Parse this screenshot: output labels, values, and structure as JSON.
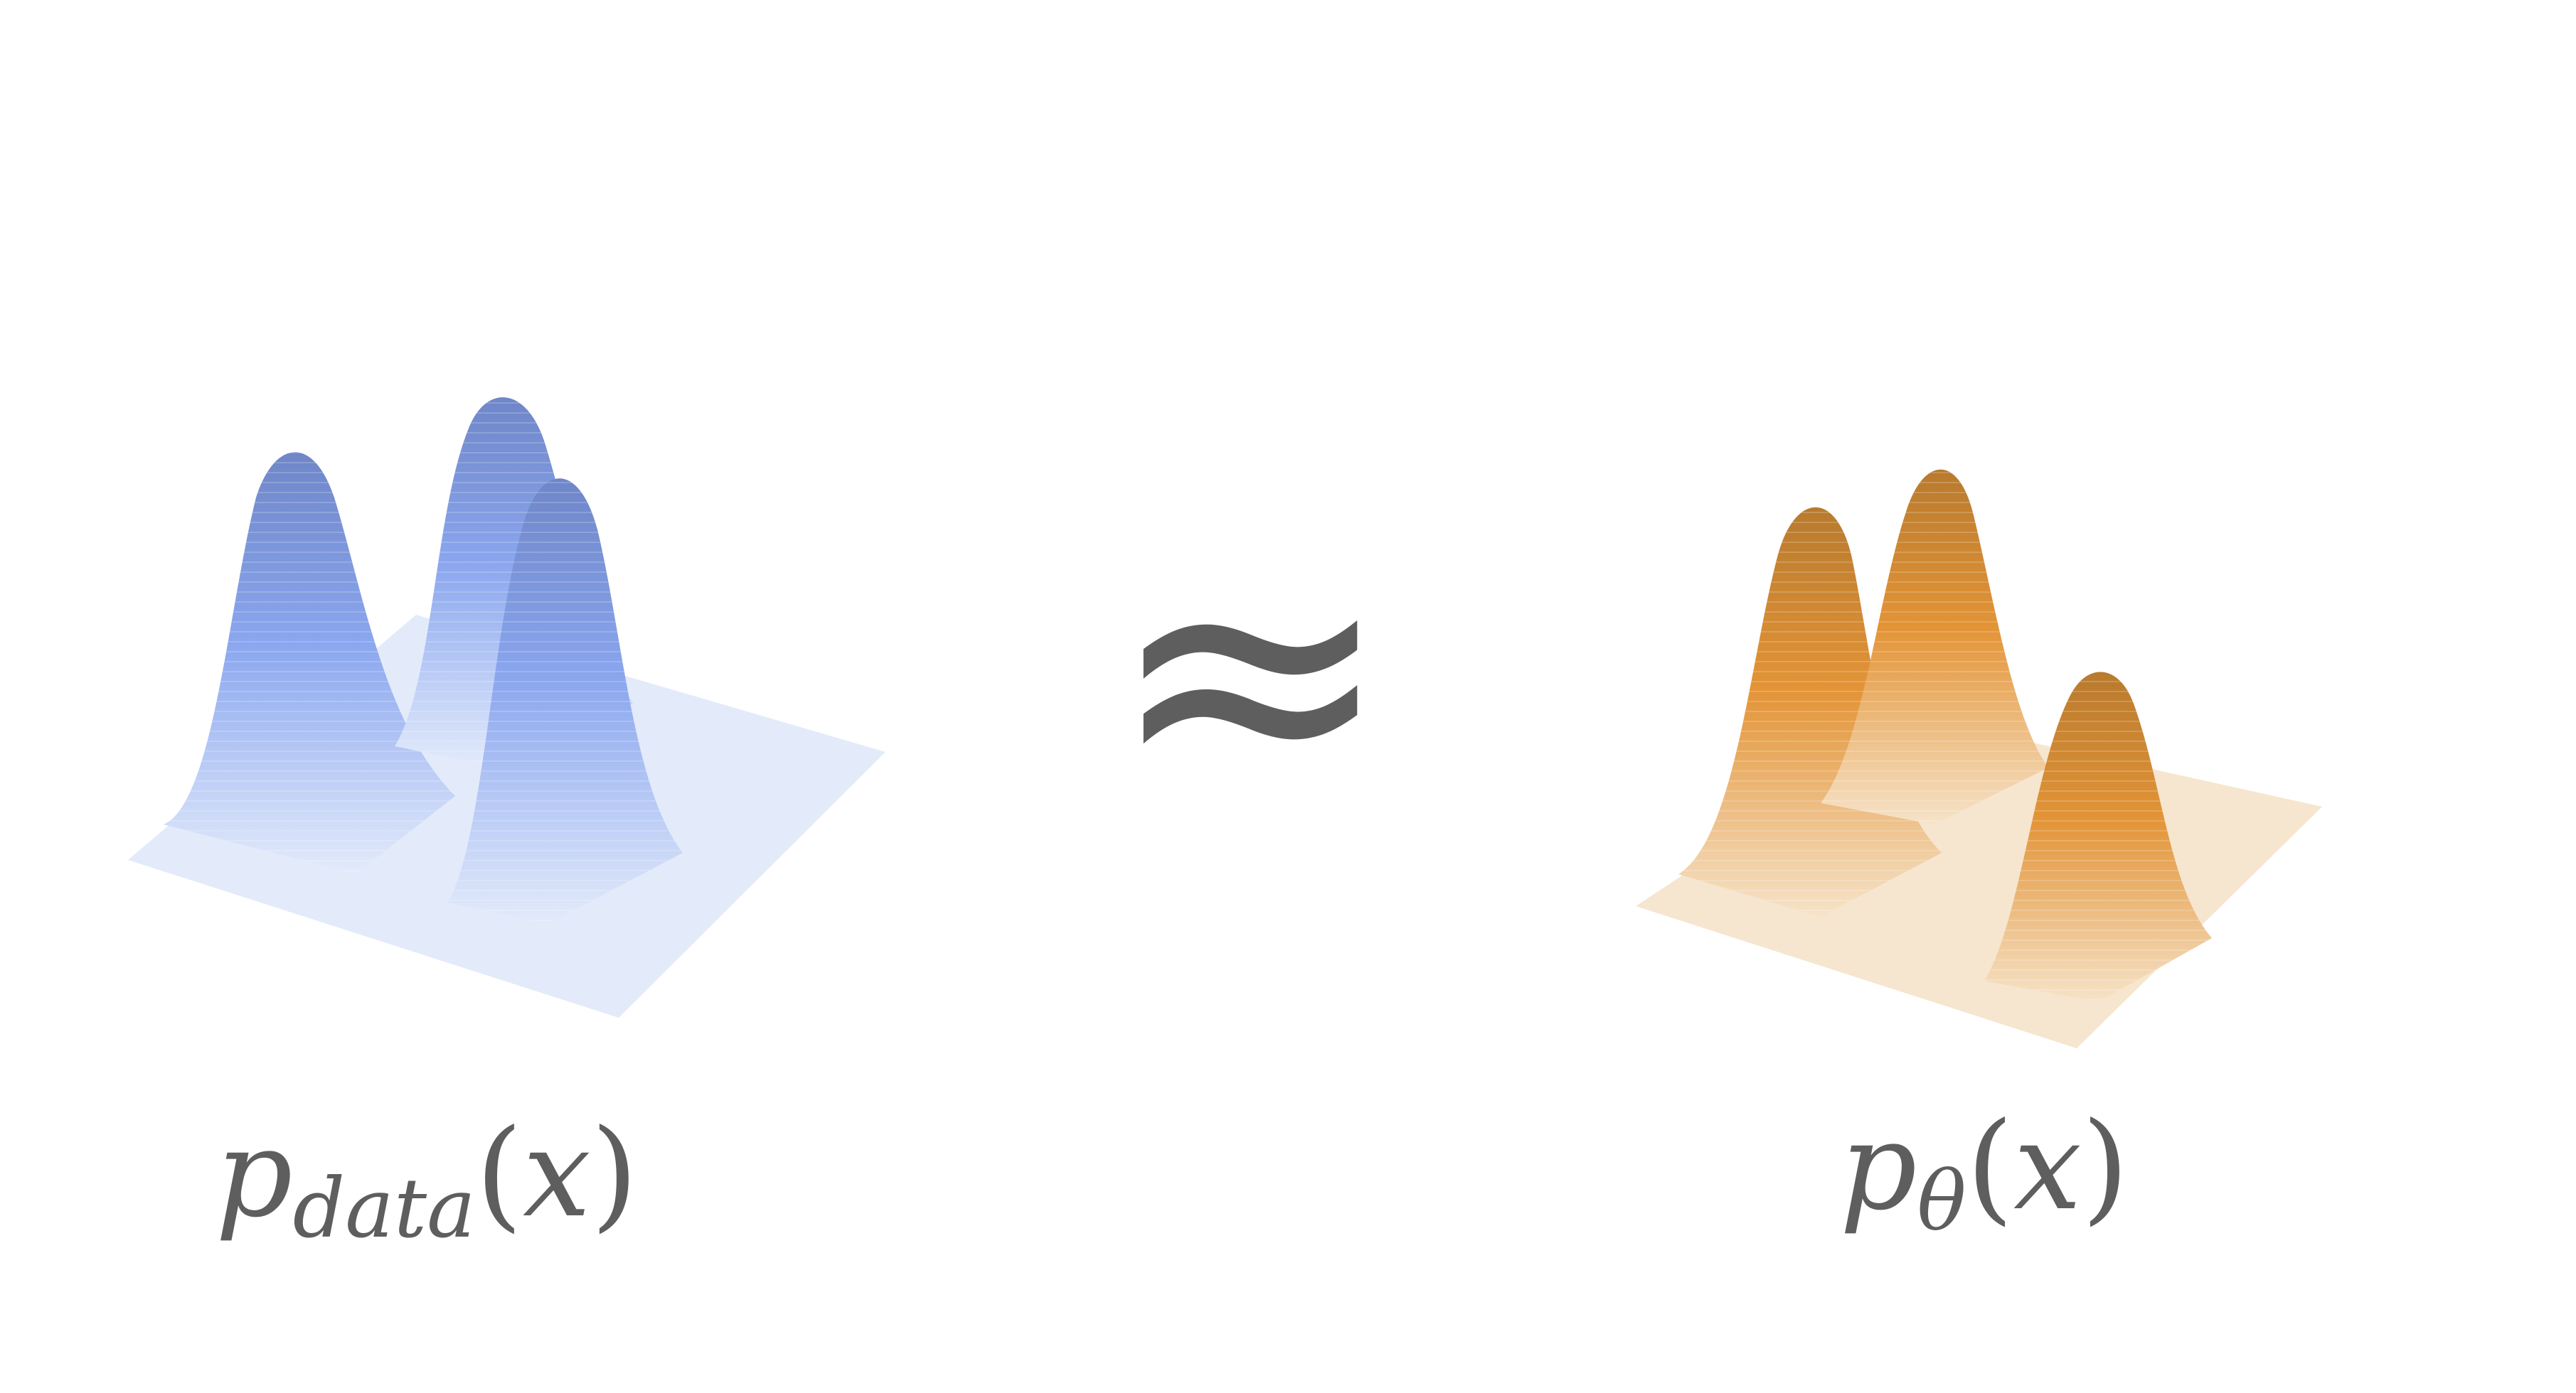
{
  "left_distribution": {
    "symbol": "p",
    "subscript": "data",
    "open_paren": "(",
    "variable": "x",
    "close_paren": ")",
    "color": "#7c9be8"
  },
  "approx_sign": {
    "symbol": "≈",
    "color": "#5e5e5e"
  },
  "right_distribution": {
    "symbol": "p",
    "subscript": "θ",
    "open_paren": "(",
    "variable": "x",
    "close_paren": ")",
    "color": "#e08f32"
  }
}
